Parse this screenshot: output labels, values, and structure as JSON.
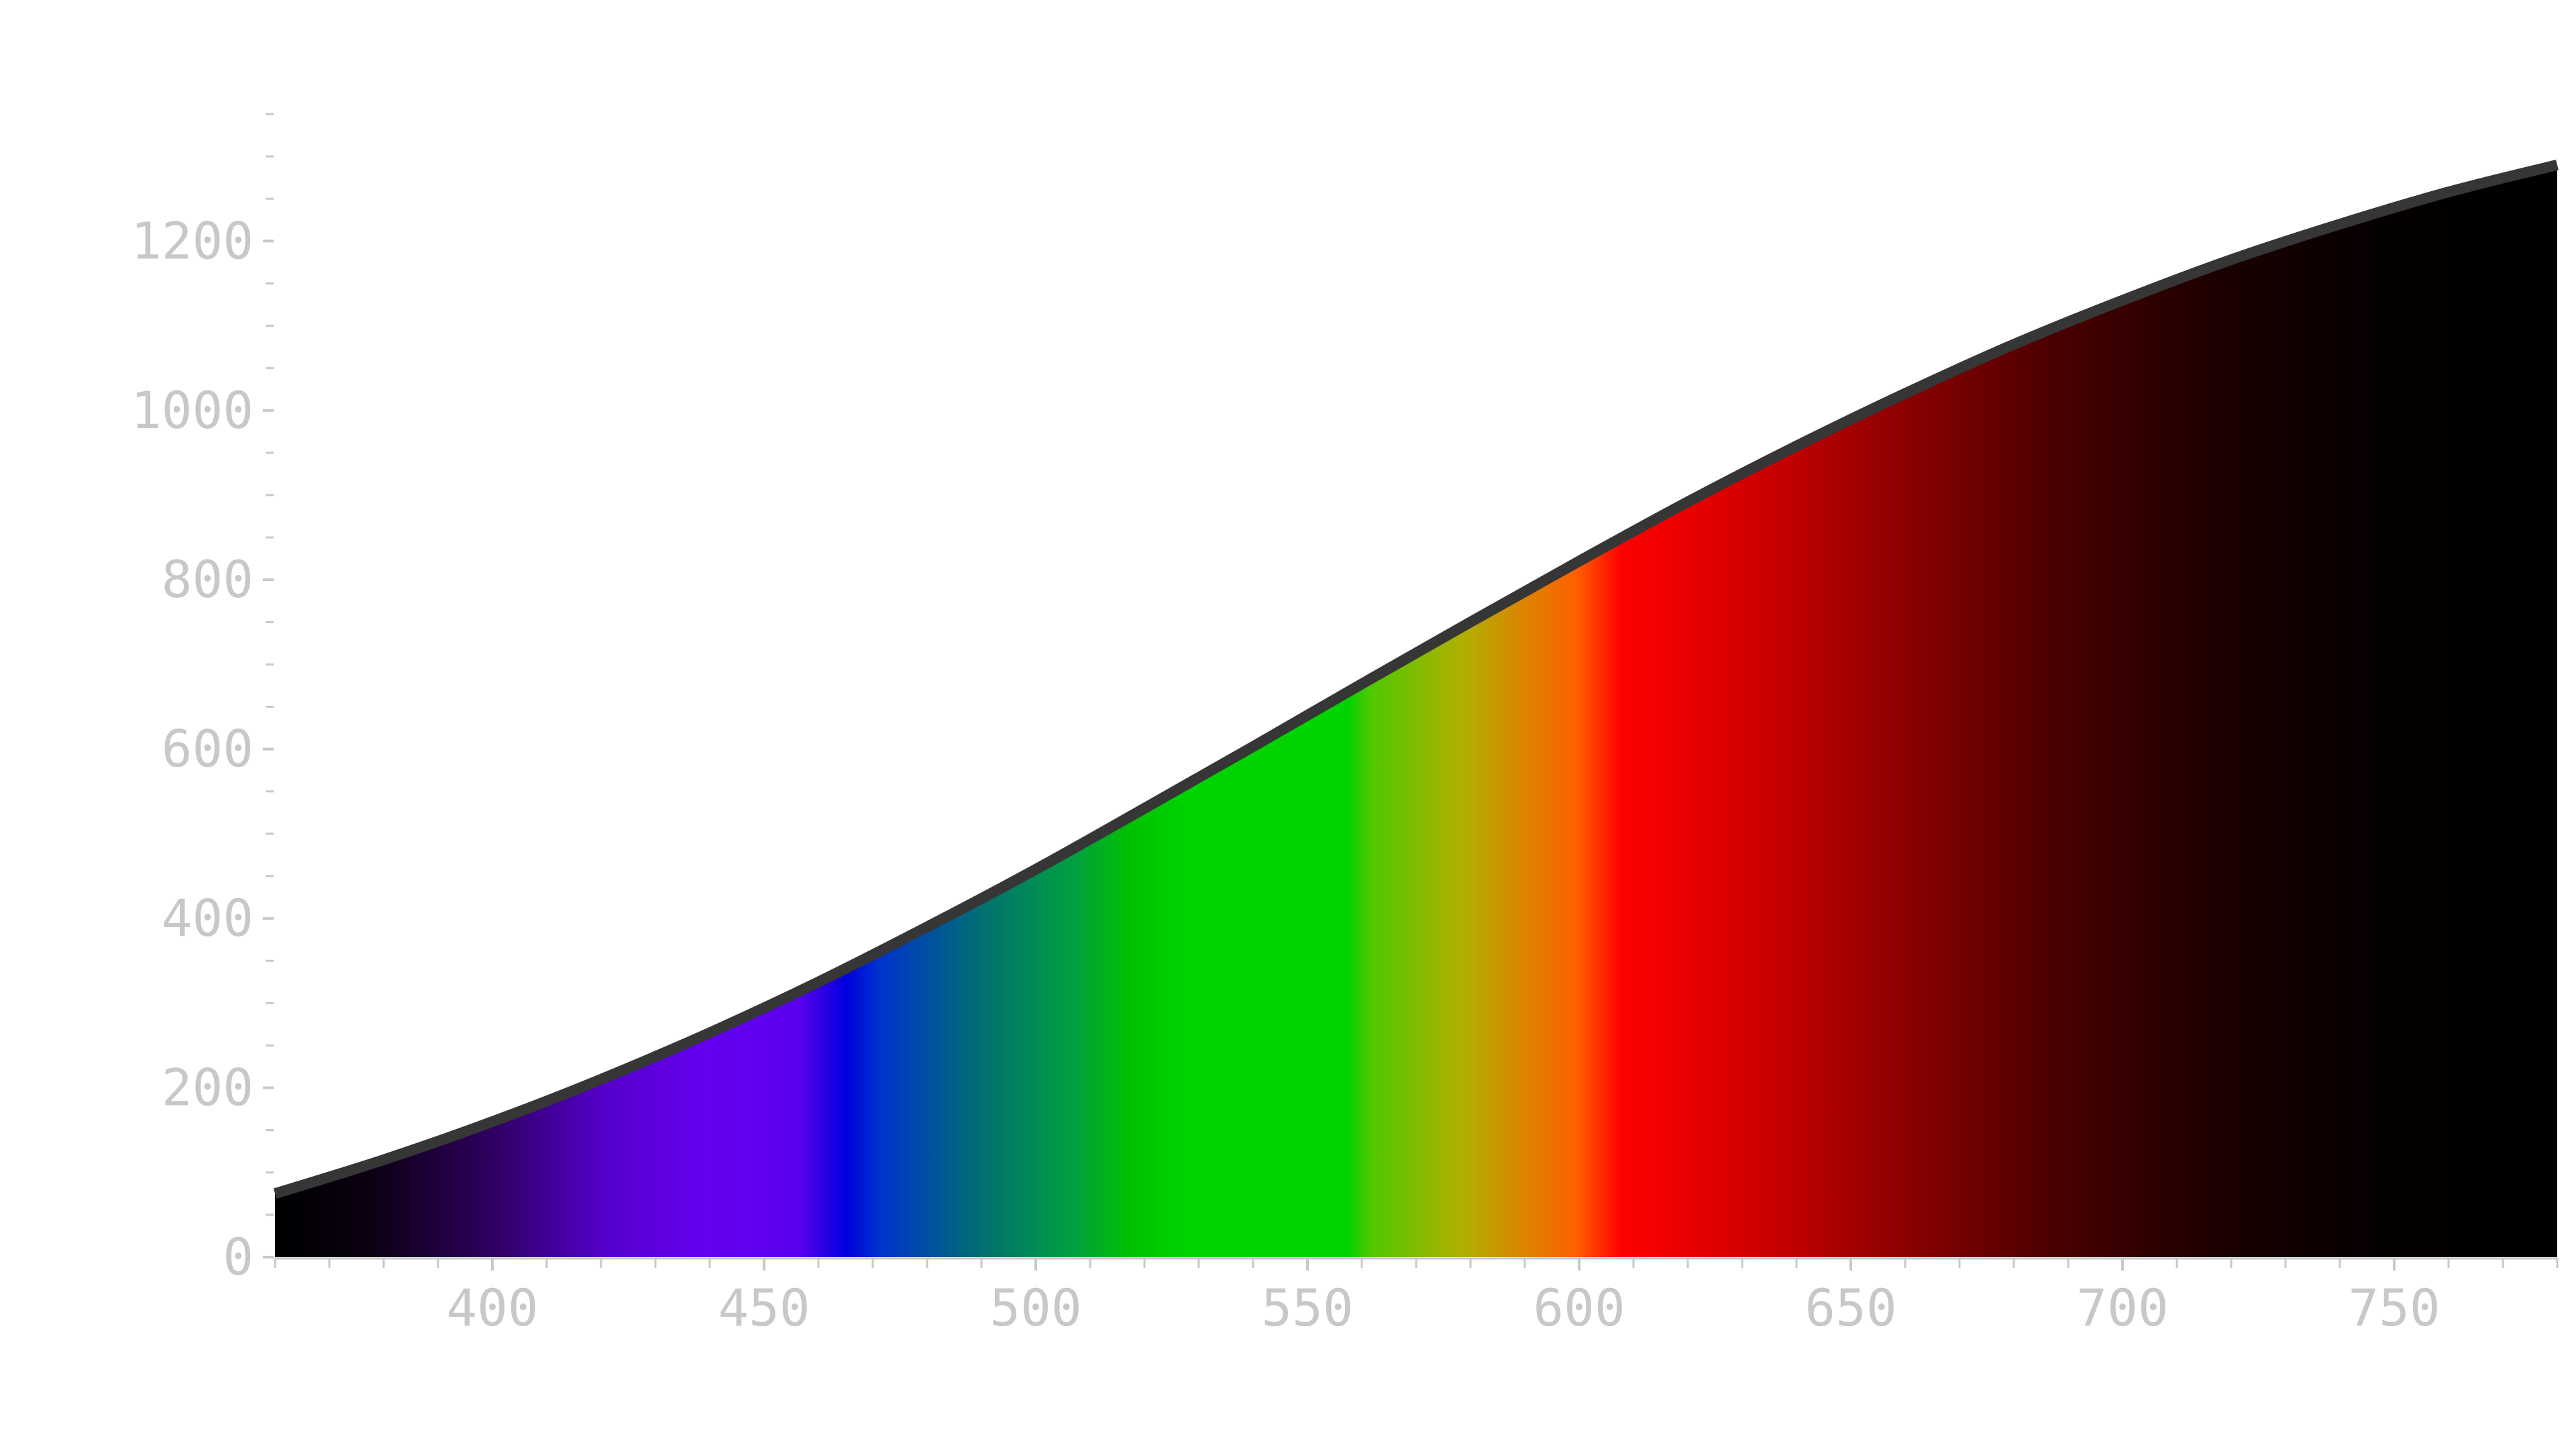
{
  "chart_data": {
    "type": "area",
    "title": "",
    "xlabel": "",
    "ylabel": "",
    "xlim": [
      360,
      780
    ],
    "ylim": [
      0,
      1350
    ],
    "grid": false,
    "x_ticks": [
      400,
      450,
      500,
      550,
      600,
      650,
      700,
      750
    ],
    "x_tick_labels": [
      "400",
      "450",
      "500",
      "550",
      "600",
      "650",
      "700",
      "750"
    ],
    "x_minor_step": 10,
    "y_ticks": [
      0,
      200,
      400,
      600,
      800,
      1000,
      1200
    ],
    "y_tick_labels": [
      "0",
      "200",
      "400",
      "600",
      "800",
      "1000",
      "1200"
    ],
    "y_minor_step": 50,
    "series": [
      {
        "x": [
          360,
          380,
          400,
          420,
          440,
          460,
          480,
          500,
          520,
          540,
          560,
          580,
          600,
          620,
          640,
          660,
          680,
          700,
          720,
          740,
          760,
          780
        ],
        "values": [
          75,
          115,
          160,
          210,
          265,
          325,
          390,
          458,
          530,
          603,
          677,
          750,
          822,
          892,
          958,
          1020,
          1078,
          1130,
          1178,
          1220,
          1258,
          1290
        ]
      }
    ],
    "fill": "visible-spectrum gradient by wavelength",
    "colors": {
      "outline": "#363636",
      "axis": "#c8c8c8",
      "tick_text": "#c8c8c8",
      "background": "#ffffff"
    }
  }
}
